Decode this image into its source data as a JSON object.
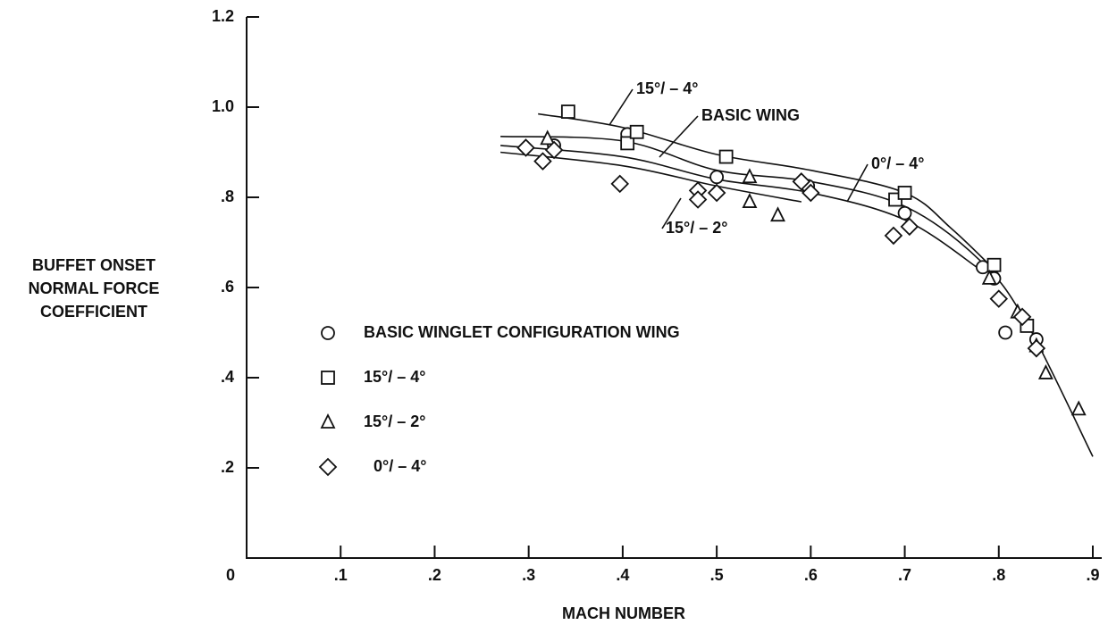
{
  "chart_data": {
    "type": "scatter",
    "x_label": "MACH NUMBER",
    "y_label": [
      "BUFFET ONSET",
      "NORMAL FORCE",
      "COEFFICIENT"
    ],
    "xlim": [
      0,
      0.9
    ],
    "ylim": [
      0,
      1.2
    ],
    "xticks": [
      {
        "value": 0,
        "label": "0"
      },
      {
        "value": 0.1,
        "label": ".1"
      },
      {
        "value": 0.2,
        "label": ".2"
      },
      {
        "value": 0.3,
        "label": ".3"
      },
      {
        "value": 0.4,
        "label": ".4"
      },
      {
        "value": 0.5,
        "label": ".5"
      },
      {
        "value": 0.6,
        "label": ".6"
      },
      {
        "value": 0.7,
        "label": ".7"
      },
      {
        "value": 0.8,
        "label": ".8"
      },
      {
        "value": 0.9,
        "label": ".9"
      }
    ],
    "yticks": [
      {
        "value": 0.2,
        "label": ".2"
      },
      {
        "value": 0.4,
        "label": ".4"
      },
      {
        "value": 0.6,
        "label": ".6"
      },
      {
        "value": 0.8,
        "label": ".8"
      },
      {
        "value": 1.0,
        "label": "1.0"
      },
      {
        "value": 1.2,
        "label": "1.2"
      }
    ],
    "series": [
      {
        "name": "BASIC WINGLET CONFIGURATION WING",
        "marker": "circle",
        "color": "#111111",
        "x": [
          0.327,
          0.405,
          0.5,
          0.597,
          0.7,
          0.783,
          0.795,
          0.807,
          0.84
        ],
        "values": [
          0.915,
          0.94,
          0.845,
          0.825,
          0.765,
          0.645,
          0.62,
          0.5,
          0.485
        ]
      },
      {
        "name": "15°/ – 4°",
        "marker": "square",
        "color": "#111111",
        "x": [
          0.342,
          0.405,
          0.415,
          0.51,
          0.69,
          0.7,
          0.795,
          0.83
        ],
        "values": [
          0.99,
          0.92,
          0.945,
          0.89,
          0.795,
          0.81,
          0.65,
          0.515
        ]
      },
      {
        "name": "15°/ – 2°",
        "marker": "triangle",
        "color": "#111111",
        "x": [
          0.32,
          0.535,
          0.535,
          0.565,
          0.79,
          0.82,
          0.84,
          0.85,
          0.885
        ],
        "values": [
          0.93,
          0.845,
          0.79,
          0.76,
          0.62,
          0.545,
          0.47,
          0.41,
          0.33
        ]
      },
      {
        "name": "0°/ – 4°",
        "marker": "diamond",
        "color": "#111111",
        "x": [
          0.297,
          0.315,
          0.327,
          0.397,
          0.48,
          0.48,
          0.5,
          0.59,
          0.6,
          0.688,
          0.705,
          0.8,
          0.825,
          0.84
        ],
        "values": [
          0.91,
          0.88,
          0.905,
          0.83,
          0.815,
          0.795,
          0.81,
          0.835,
          0.81,
          0.715,
          0.735,
          0.575,
          0.535,
          0.465
        ]
      }
    ],
    "curves": [
      {
        "label": "15°/ – 4°",
        "x": [
          0.31,
          0.4,
          0.5,
          0.6,
          0.7,
          0.75,
          0.8
        ],
        "values": [
          0.985,
          0.955,
          0.895,
          0.86,
          0.81,
          0.73,
          0.63
        ]
      },
      {
        "label": "BASIC WING",
        "x": [
          0.27,
          0.4,
          0.5,
          0.6,
          0.7,
          0.78,
          0.83,
          0.9
        ],
        "values": [
          0.935,
          0.925,
          0.86,
          0.835,
          0.78,
          0.66,
          0.52,
          0.225
        ]
      },
      {
        "label": "0°/ – 4°",
        "x": [
          0.27,
          0.4,
          0.5,
          0.6,
          0.7,
          0.78
        ],
        "values": [
          0.915,
          0.89,
          0.84,
          0.81,
          0.75,
          0.64
        ]
      },
      {
        "label": "15°/ – 2°",
        "x": [
          0.27,
          0.4,
          0.5,
          0.59
        ],
        "values": [
          0.9,
          0.87,
          0.825,
          0.79
        ]
      }
    ]
  }
}
